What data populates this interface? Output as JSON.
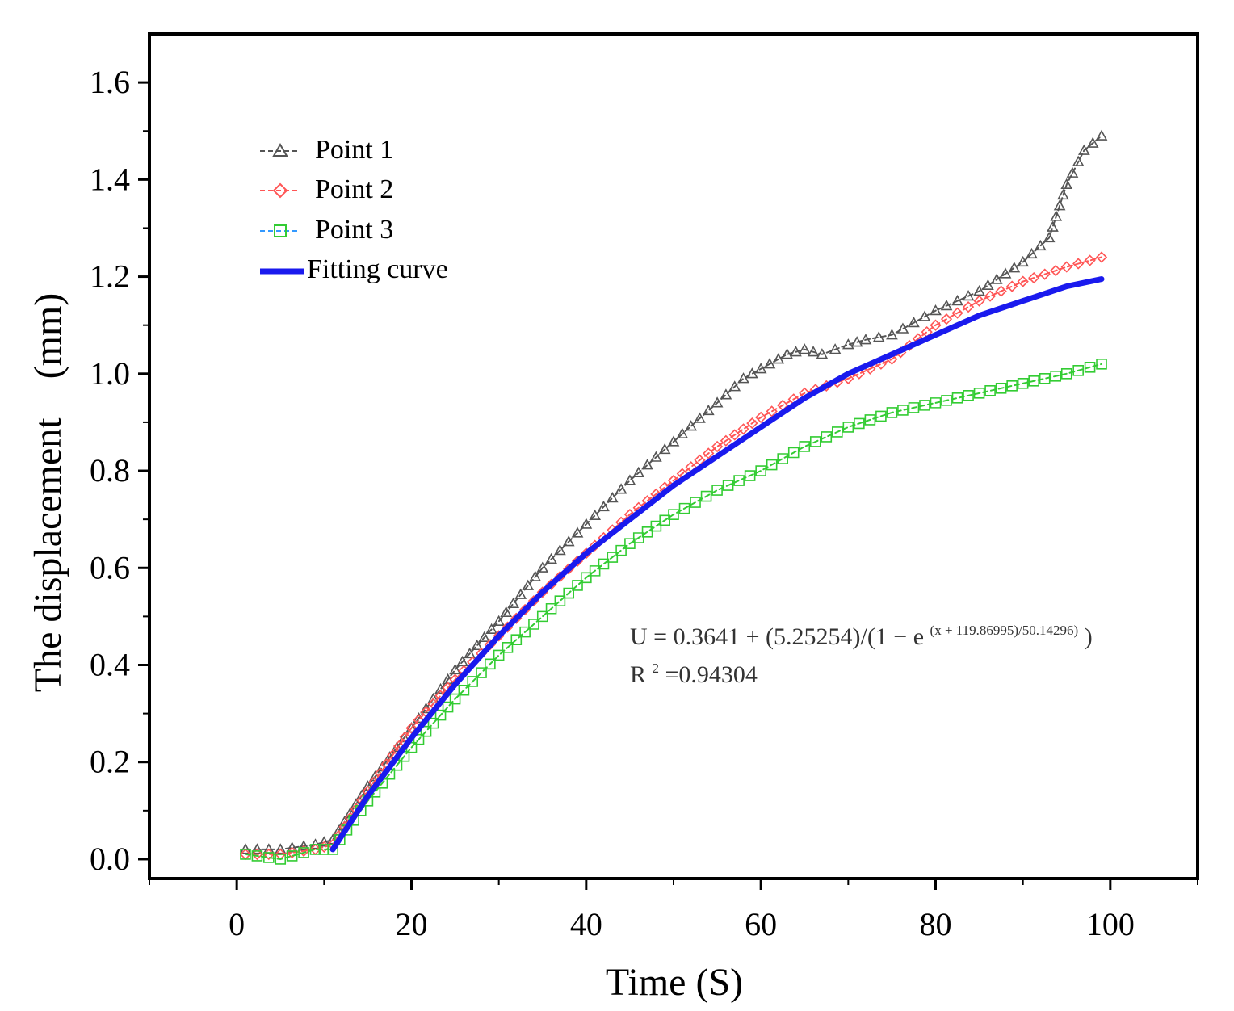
{
  "chart_data": {
    "type": "line",
    "title": "",
    "xlabel": "Time (S)",
    "ylabel": "The displacement　(mm)",
    "xlim": [
      -10,
      110
    ],
    "ylim": [
      -0.04,
      1.7
    ],
    "xticks": [
      0,
      20,
      40,
      60,
      80,
      100
    ],
    "yticks": [
      0.0,
      0.2,
      0.4,
      0.6,
      0.8,
      1.0,
      1.2,
      1.4,
      1.6
    ],
    "xtick_labels": [
      "0",
      "20",
      "40",
      "60",
      "80",
      "100"
    ],
    "ytick_labels": [
      "0.0",
      "0.2",
      "0.4",
      "0.6",
      "0.8",
      "1.0",
      "1.2",
      "1.4",
      "1.6"
    ],
    "grid": false,
    "legend_position": "top-left",
    "series": [
      {
        "name": "Point 1",
        "color": "#555555",
        "marker": "triangle",
        "x": [
          1,
          5,
          9,
          11,
          15,
          20,
          25,
          30,
          35,
          40,
          45,
          50,
          55,
          58,
          60,
          63,
          65,
          67,
          70,
          72,
          75,
          80,
          85,
          90,
          93,
          95,
          97,
          99
        ],
        "y": [
          0.02,
          0.02,
          0.03,
          0.04,
          0.15,
          0.27,
          0.39,
          0.49,
          0.6,
          0.69,
          0.78,
          0.86,
          0.94,
          0.99,
          1.01,
          1.04,
          1.05,
          1.04,
          1.06,
          1.07,
          1.08,
          1.13,
          1.17,
          1.23,
          1.28,
          1.39,
          1.46,
          1.49
        ]
      },
      {
        "name": "Point 2",
        "color": "#ff5555",
        "marker": "diamond",
        "x": [
          1,
          5,
          9,
          11,
          15,
          20,
          25,
          30,
          35,
          40,
          45,
          50,
          55,
          60,
          65,
          70,
          75,
          80,
          85,
          90,
          95,
          99
        ],
        "y": [
          0.01,
          0.01,
          0.02,
          0.03,
          0.14,
          0.27,
          0.37,
          0.46,
          0.55,
          0.63,
          0.71,
          0.78,
          0.85,
          0.91,
          0.96,
          0.99,
          1.03,
          1.1,
          1.15,
          1.19,
          1.22,
          1.24
        ]
      },
      {
        "name": "Point 3",
        "color": "#33cc33",
        "marker": "square",
        "x": [
          1,
          5,
          9,
          11,
          15,
          20,
          25,
          30,
          35,
          40,
          45,
          50,
          55,
          60,
          65,
          70,
          75,
          80,
          85,
          90,
          95,
          99
        ],
        "y": [
          0.01,
          0.0,
          0.02,
          0.02,
          0.12,
          0.23,
          0.33,
          0.42,
          0.5,
          0.58,
          0.65,
          0.71,
          0.76,
          0.8,
          0.85,
          0.89,
          0.92,
          0.94,
          0.96,
          0.98,
          1.0,
          1.02
        ]
      },
      {
        "name": "Fitting curve",
        "color": "#1a1aee",
        "marker": "none",
        "x": [
          11,
          15,
          20,
          25,
          30,
          35,
          40,
          45,
          50,
          55,
          60,
          65,
          70,
          75,
          80,
          85,
          90,
          95,
          99
        ],
        "y": [
          0.02,
          0.13,
          0.25,
          0.36,
          0.46,
          0.55,
          0.63,
          0.7,
          0.77,
          0.83,
          0.89,
          0.95,
          1.0,
          1.04,
          1.08,
          1.12,
          1.15,
          1.18,
          1.195
        ]
      }
    ],
    "annotations": {
      "equation_main": "U = 0.3641 + (5.25254)/(1 − e",
      "equation_exp": "(x + 119.86995)/50.14296)",
      "equation_close": ")",
      "r2_prefix": "R",
      "r2_sup": "2",
      "r2_value": "=0.94304"
    }
  }
}
